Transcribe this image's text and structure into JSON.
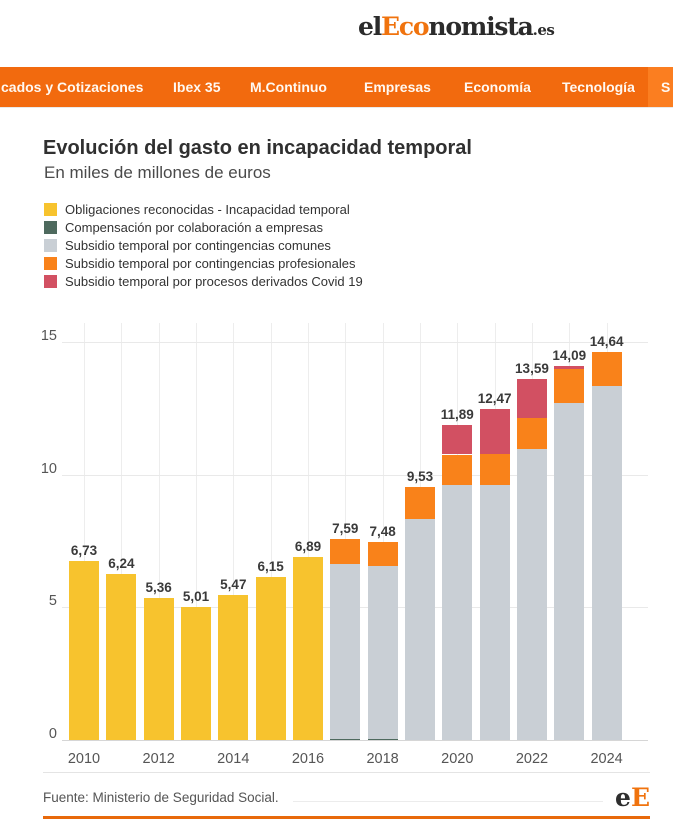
{
  "header": {
    "logo": {
      "prefix": "el",
      "accent": "Eco",
      "suffix": "nomista",
      "tld": ".es"
    }
  },
  "nav": {
    "items": [
      {
        "label": "cados y Cotizaciones"
      },
      {
        "label": "Ibex 35"
      },
      {
        "label": "M.Continuo"
      },
      {
        "label": "Empresas"
      },
      {
        "label": "Economía"
      },
      {
        "label": "Tecnología"
      },
      {
        "label": "S"
      }
    ],
    "background_color": "#f26a0e",
    "highlight_color": "#fb7e20"
  },
  "chart_data": {
    "type": "bar",
    "stacked": true,
    "title": "Evolución del gasto en incapacidad temporal",
    "subtitle": "En miles de millones de euros",
    "categories": [
      2010,
      2011,
      2012,
      2013,
      2014,
      2015,
      2016,
      2017,
      2018,
      2019,
      2020,
      2021,
      2022,
      2023,
      2024
    ],
    "x_tick_labels": [
      "2010",
      "2012",
      "2014",
      "2016",
      "2018",
      "2020",
      "2022",
      "2024"
    ],
    "y_ticks": [
      0,
      5,
      10,
      15
    ],
    "ylim": [
      0,
      15
    ],
    "grid": true,
    "legend_position": "top-left",
    "totals": [
      6.73,
      6.24,
      5.36,
      5.01,
      5.47,
      6.15,
      6.89,
      7.59,
      7.48,
      9.53,
      11.89,
      12.47,
      13.59,
      14.09,
      14.64
    ],
    "total_labels": [
      "6,73",
      "6,24",
      "5,36",
      "5,01",
      "5,47",
      "6,15",
      "6,89",
      "7,59",
      "7,48",
      "9,53",
      "11,89",
      "12,47",
      "13,59",
      "14,09",
      "14,64"
    ],
    "series": [
      {
        "name": "Obligaciones reconocidas - Incapacidad temporal",
        "color": "#f7c32e",
        "values": [
          6.73,
          6.24,
          5.36,
          5.01,
          5.47,
          6.15,
          6.89,
          0,
          0,
          0,
          0,
          0,
          0,
          0,
          0
        ]
      },
      {
        "name": "Compensación por colaboración a empresas",
        "color": "#4e6a5e",
        "values": [
          0,
          0,
          0,
          0,
          0,
          0,
          0,
          0.03,
          0.03,
          0,
          0,
          0,
          0,
          0,
          0
        ]
      },
      {
        "name": "Subsidio temporal por contingencias comunes",
        "color": "#c9cfd5",
        "values": [
          0,
          0,
          0,
          0,
          0,
          0,
          0,
          6.59,
          6.53,
          8.34,
          9.6,
          9.62,
          10.97,
          12.7,
          13.33
        ]
      },
      {
        "name": "Subsidio temporal por contingencias profesionales",
        "color": "#f9821a",
        "values": [
          0,
          0,
          0,
          0,
          0,
          0,
          0,
          0.97,
          0.92,
          1.19,
          1.16,
          1.17,
          1.18,
          1.29,
          1.31
        ]
      },
      {
        "name": "Subsidio temporal por procesos derivados Covid 19",
        "color": "#d25062",
        "values": [
          0,
          0,
          0,
          0,
          0,
          0,
          0,
          0,
          0,
          0,
          1.13,
          1.68,
          1.44,
          0.1,
          0
        ]
      }
    ]
  },
  "footer": {
    "source": "Fuente: Ministerio de Seguridad Social.",
    "logo": {
      "e": "e",
      "accent": "E"
    }
  }
}
